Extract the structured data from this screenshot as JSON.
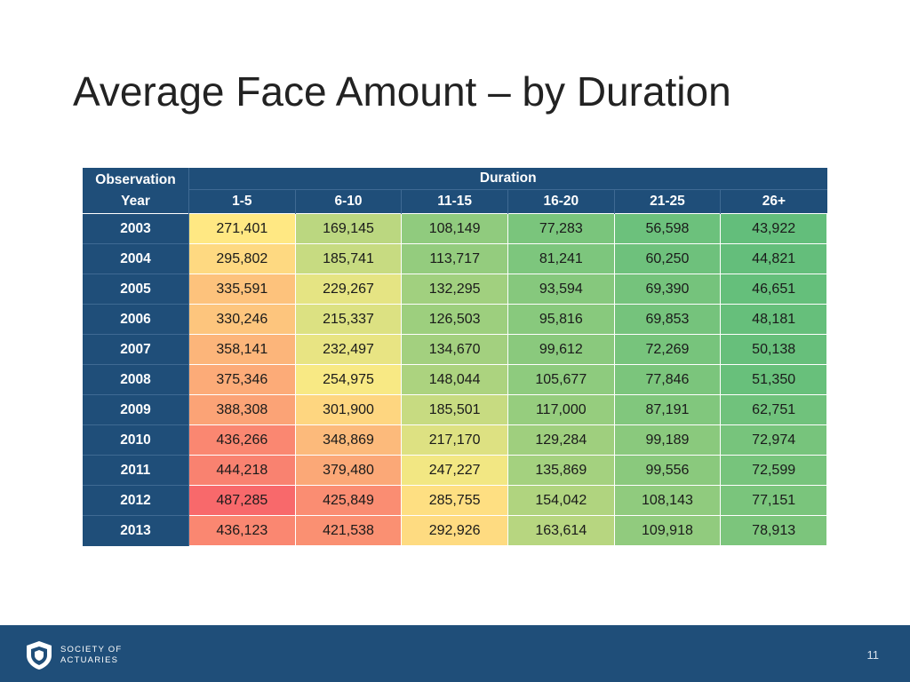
{
  "slide": {
    "title": "Average Face Amount – by Duration",
    "page_number": "11",
    "logo": {
      "line1": "SOCIETY OF",
      "line2": "ACTUARIES"
    }
  },
  "colors": {
    "header_bg": "#1f4e79",
    "header_text": "#ffffff",
    "scale_low": "#63be7b",
    "scale_mid": "#ffeb84",
    "scale_high": "#f8696b"
  },
  "chart_data": {
    "type": "heatmap",
    "title": "Average Face Amount – by Duration",
    "row_header": {
      "line1": "Observation",
      "line2": "Year"
    },
    "column_group_label": "Duration",
    "columns": [
      "1-5",
      "6-10",
      "11-15",
      "16-20",
      "21-25",
      "26+"
    ],
    "rows": [
      {
        "year": "2003",
        "values": [
          271401,
          169145,
          108149,
          77283,
          56598,
          43922
        ],
        "labels": [
          "271,401",
          "169,145",
          "108,149",
          "77,283",
          "56,598",
          "43,922"
        ]
      },
      {
        "year": "2004",
        "values": [
          295802,
          185741,
          113717,
          81241,
          60250,
          44821
        ],
        "labels": [
          "295,802",
          "185,741",
          "113,717",
          "81,241",
          "60,250",
          "44,821"
        ]
      },
      {
        "year": "2005",
        "values": [
          335591,
          229267,
          132295,
          93594,
          69390,
          46651
        ],
        "labels": [
          "335,591",
          "229,267",
          "132,295",
          "93,594",
          "69,390",
          "46,651"
        ]
      },
      {
        "year": "2006",
        "values": [
          330246,
          215337,
          126503,
          95816,
          69853,
          48181
        ],
        "labels": [
          "330,246",
          "215,337",
          "126,503",
          "95,816",
          "69,853",
          "48,181"
        ]
      },
      {
        "year": "2007",
        "values": [
          358141,
          232497,
          134670,
          99612,
          72269,
          50138
        ],
        "labels": [
          "358,141",
          "232,497",
          "134,670",
          "99,612",
          "72,269",
          "50,138"
        ]
      },
      {
        "year": "2008",
        "values": [
          375346,
          254975,
          148044,
          105677,
          77846,
          51350
        ],
        "labels": [
          "375,346",
          "254,975",
          "148,044",
          "105,677",
          "77,846",
          "51,350"
        ]
      },
      {
        "year": "2009",
        "values": [
          388308,
          301900,
          185501,
          117000,
          87191,
          62751
        ],
        "labels": [
          "388,308",
          "301,900",
          "185,501",
          "117,000",
          "87,191",
          "62,751"
        ]
      },
      {
        "year": "2010",
        "values": [
          436266,
          348869,
          217170,
          129284,
          99189,
          72974
        ],
        "labels": [
          "436,266",
          "348,869",
          "217,170",
          "129,284",
          "99,189",
          "72,974"
        ]
      },
      {
        "year": "2011",
        "values": [
          444218,
          379480,
          247227,
          135869,
          99556,
          72599
        ],
        "labels": [
          "444,218",
          "379,480",
          "247,227",
          "135,869",
          "99,556",
          "72,599"
        ]
      },
      {
        "year": "2012",
        "values": [
          487285,
          425849,
          285755,
          154042,
          108143,
          77151
        ],
        "labels": [
          "487,285",
          "425,849",
          "285,755",
          "154,042",
          "108,143",
          "77,151"
        ]
      },
      {
        "year": "2013",
        "values": [
          436123,
          421538,
          292926,
          163614,
          109918,
          78913
        ],
        "labels": [
          "436,123",
          "421,538",
          "292,926",
          "163,614",
          "109,918",
          "78,913"
        ]
      }
    ]
  }
}
